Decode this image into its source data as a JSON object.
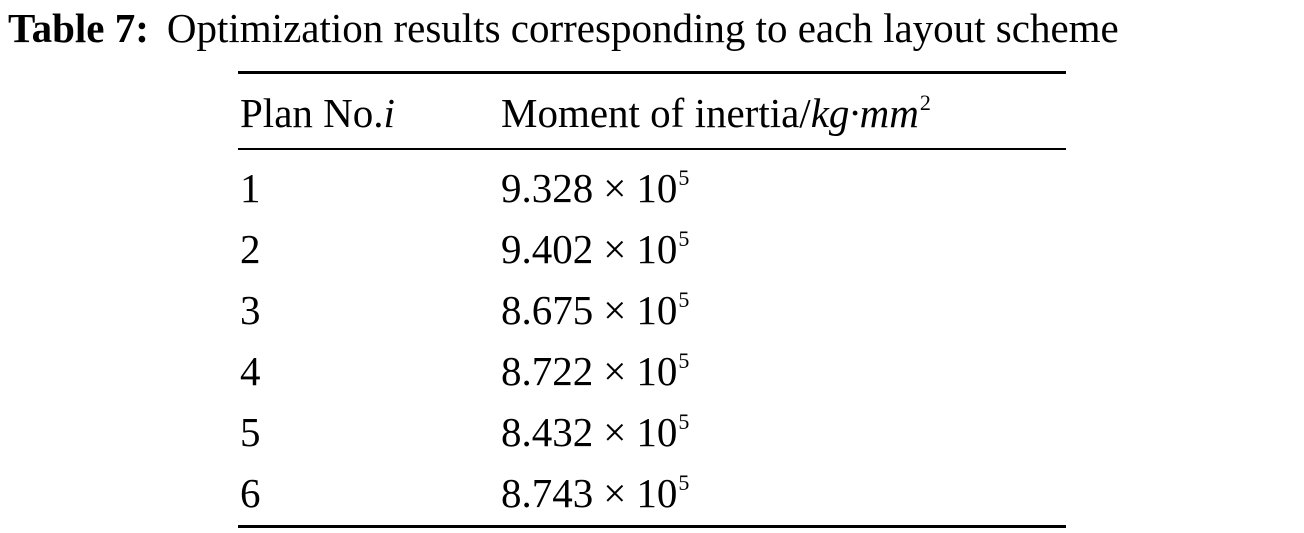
{
  "caption": {
    "label": "Table 7:",
    "text": "Optimization results corresponding to each layout scheme"
  },
  "table": {
    "headers": {
      "col1_text": "Plan No.",
      "col1_var": "i",
      "col2_text": "Moment of inertia/",
      "col2_unit": "kg·mm",
      "col2_unit_exp": "2"
    },
    "times_symbol": "×",
    "base": "10",
    "rows": [
      {
        "plan": "1",
        "mantissa": "9.328",
        "exponent": "5"
      },
      {
        "plan": "2",
        "mantissa": "9.402",
        "exponent": "5"
      },
      {
        "plan": "3",
        "mantissa": "8.675",
        "exponent": "5"
      },
      {
        "plan": "4",
        "mantissa": "8.722",
        "exponent": "5"
      },
      {
        "plan": "5",
        "mantissa": "8.432",
        "exponent": "5"
      },
      {
        "plan": "6",
        "mantissa": "8.743",
        "exponent": "5"
      }
    ]
  }
}
